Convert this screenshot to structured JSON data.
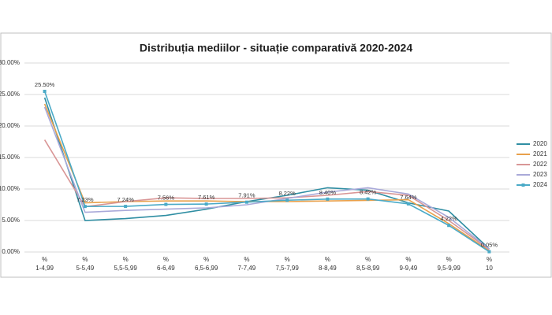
{
  "chart_data": {
    "type": "line",
    "title": "Distribuția mediilor - situație comparativă 2020-2024",
    "category_prefix": "%",
    "categories": [
      "1-4,99",
      "5-5,49",
      "5,5-5,99",
      "6-6,49",
      "6,5-6,99",
      "7-7,49",
      "7,5-7,99",
      "8-8,49",
      "8,5-8,99",
      "9-9,49",
      "9,5-9,99",
      "10"
    ],
    "ylim": [
      0,
      30
    ],
    "yticks": [
      {
        "value": 0,
        "label": "0.00%"
      },
      {
        "value": 5,
        "label": "5.00%"
      },
      {
        "value": 10,
        "label": "10.00%"
      },
      {
        "value": 15,
        "label": "15.00%"
      },
      {
        "value": 20,
        "label": "20.00%"
      },
      {
        "value": 25,
        "label": "25.00%"
      },
      {
        "value": 30,
        "label": "30.00%"
      }
    ],
    "grid": true,
    "legend": "right",
    "series": [
      {
        "name": "2020",
        "color": "#2f8ea3",
        "values": [
          24.5,
          5.0,
          5.3,
          5.8,
          6.8,
          8.0,
          9.0,
          10.2,
          9.8,
          7.8,
          6.5,
          0.5
        ]
      },
      {
        "name": "2021",
        "color": "#e8a04b",
        "values": [
          23.5,
          7.8,
          8.0,
          8.1,
          8.1,
          8.0,
          8.0,
          8.1,
          8.2,
          8.3,
          4.5,
          0.2
        ]
      },
      {
        "name": "2022",
        "color": "#d99696",
        "values": [
          17.8,
          7.2,
          8.0,
          8.6,
          8.5,
          8.5,
          8.6,
          9.0,
          9.6,
          9.0,
          5.0,
          0.4
        ]
      },
      {
        "name": "2023",
        "color": "#a9a9d9",
        "values": [
          23.0,
          6.3,
          6.6,
          6.8,
          7.0,
          7.5,
          8.5,
          9.5,
          10.2,
          9.2,
          5.5,
          0.5
        ]
      },
      {
        "name": "2024",
        "color": "#4aaac7",
        "marker": true,
        "values": [
          25.5,
          7.23,
          7.24,
          7.56,
          7.61,
          7.91,
          8.22,
          8.4,
          8.42,
          7.64,
          4.22,
          0.05
        ],
        "value_labels": [
          "25.50%",
          "7.23%",
          "7.24%",
          "7.56%",
          "7.61%",
          "7.91%",
          "8.22%",
          "8.40%",
          "8.42%",
          "7.64%",
          "4.22%",
          "0.05%"
        ]
      }
    ]
  }
}
